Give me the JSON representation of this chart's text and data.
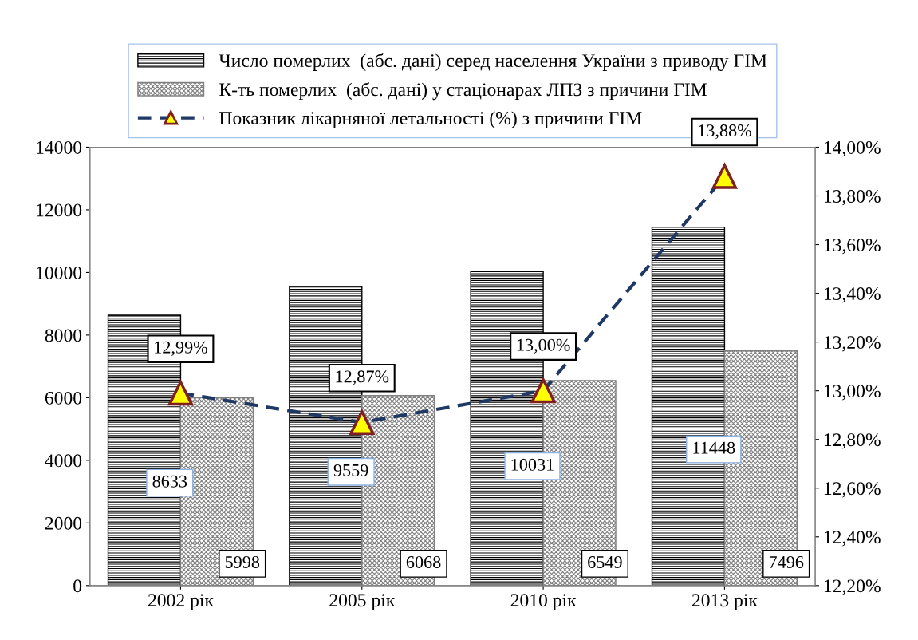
{
  "chart_data": {
    "type": "bar",
    "categories": [
      "2002 рік",
      "2005 рік",
      "2010 рік",
      "2013 рік"
    ],
    "series": [
      {
        "name": "Число померлих  (абс. дані) серед населення України з приводу ГІМ",
        "color": "#000000",
        "values": [
          8633,
          9559,
          10031,
          11448
        ],
        "value_labels": [
          "8633",
          "9559",
          "10031",
          "11448"
        ]
      },
      {
        "name": "К-ть померлих  (абс. дані) у стаціонарах ЛПЗ з причини ГІМ",
        "color": "#808080",
        "values": [
          5998,
          6068,
          6549,
          7496
        ],
        "value_labels": [
          "5998",
          "6068",
          "6549",
          "7496"
        ]
      },
      {
        "name": "Показник лікарняної летальності (%) з причини ГІМ",
        "type": "line",
        "axis": "y2",
        "color": "#1f3864",
        "marker": "triangle",
        "line_style": "dashed",
        "values": [
          12.99,
          12.87,
          13.0,
          13.88
        ],
        "value_labels": [
          "12,99%",
          "12,87%",
          "13,00%",
          "13,88%"
        ]
      }
    ],
    "ylim": [
      0,
      14000
    ],
    "yticks": [
      0,
      2000,
      4000,
      6000,
      8000,
      10000,
      12000,
      14000
    ],
    "y2lim": [
      12.2,
      14.0
    ],
    "y2ticks": [
      {
        "value": 12.2,
        "label": "12,20%"
      },
      {
        "value": 12.4,
        "label": "12,40%"
      },
      {
        "value": 12.6,
        "label": "12,60%"
      },
      {
        "value": 12.8,
        "label": "12,80%"
      },
      {
        "value": 13.0,
        "label": "13,00%"
      },
      {
        "value": 13.2,
        "label": "13,20%"
      },
      {
        "value": 13.4,
        "label": "13,40%"
      },
      {
        "value": 13.6,
        "label": "13,60%"
      },
      {
        "value": 13.8,
        "label": "13,80%"
      },
      {
        "value": 14.0,
        "label": "14,00%"
      }
    ],
    "grid": false,
    "legend": "top"
  }
}
